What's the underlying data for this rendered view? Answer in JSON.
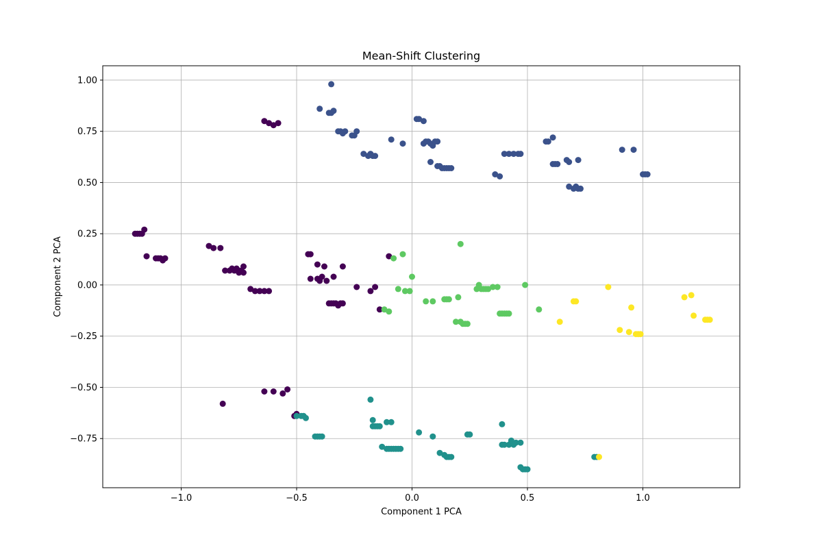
{
  "chart_data": {
    "type": "scatter",
    "title": "Mean-Shift Clustering",
    "xlabel": "Component 1 PCA",
    "ylabel": "Component 2 PCA",
    "xlim": [
      -1.34,
      1.42
    ],
    "ylim": [
      -0.99,
      1.07
    ],
    "xticks": [
      -1.0,
      -0.5,
      0.0,
      0.5,
      1.0
    ],
    "xtick_labels": [
      "−1.0",
      "−0.5",
      "0.0",
      "0.5",
      "1.0"
    ],
    "yticks": [
      -0.75,
      -0.5,
      -0.25,
      0.0,
      0.25,
      0.5,
      0.75,
      1.0
    ],
    "ytick_labels": [
      "−0.75",
      "−0.50",
      "−0.25",
      "0.00",
      "0.25",
      "0.50",
      "0.75",
      "1.00"
    ],
    "grid": true,
    "colors": [
      "#440154",
      "#3b528b",
      "#21918c",
      "#5ec962",
      "#fde725"
    ],
    "series": [
      {
        "cluster": 0,
        "points": [
          [
            -1.2,
            0.25
          ],
          [
            -1.19,
            0.25
          ],
          [
            -1.18,
            0.25
          ],
          [
            -1.17,
            0.25
          ],
          [
            -1.16,
            0.27
          ],
          [
            -1.15,
            0.14
          ],
          [
            -1.11,
            0.13
          ],
          [
            -1.1,
            0.13
          ],
          [
            -1.09,
            0.13
          ],
          [
            -1.08,
            0.12
          ],
          [
            -1.07,
            0.13
          ],
          [
            -0.88,
            0.19
          ],
          [
            -0.86,
            0.18
          ],
          [
            -0.83,
            0.18
          ],
          [
            -0.81,
            0.07
          ],
          [
            -0.79,
            0.07
          ],
          [
            -0.78,
            0.08
          ],
          [
            -0.77,
            0.07
          ],
          [
            -0.76,
            0.08
          ],
          [
            -0.75,
            0.06
          ],
          [
            -0.74,
            0.07
          ],
          [
            -0.73,
            0.09
          ],
          [
            -0.73,
            0.06
          ],
          [
            -0.7,
            -0.02
          ],
          [
            -0.68,
            -0.03
          ],
          [
            -0.66,
            -0.03
          ],
          [
            -0.64,
            -0.03
          ],
          [
            -0.62,
            -0.03
          ],
          [
            -0.64,
            0.8
          ],
          [
            -0.62,
            0.79
          ],
          [
            -0.6,
            0.78
          ],
          [
            -0.58,
            0.79
          ],
          [
            -0.45,
            0.15
          ],
          [
            -0.44,
            0.15
          ],
          [
            -0.44,
            0.03
          ],
          [
            -0.41,
            0.03
          ],
          [
            -0.4,
            0.02
          ],
          [
            -0.39,
            0.04
          ],
          [
            -0.37,
            0.02
          ],
          [
            -0.34,
            0.04
          ],
          [
            -0.41,
            0.1
          ],
          [
            -0.38,
            0.09
          ],
          [
            -0.3,
            0.09
          ],
          [
            -0.36,
            -0.09
          ],
          [
            -0.35,
            -0.09
          ],
          [
            -0.34,
            -0.09
          ],
          [
            -0.33,
            -0.09
          ],
          [
            -0.32,
            -0.1
          ],
          [
            -0.31,
            -0.09
          ],
          [
            -0.3,
            -0.09
          ],
          [
            -0.24,
            -0.01
          ],
          [
            -0.18,
            -0.03
          ],
          [
            -0.16,
            -0.01
          ],
          [
            -0.1,
            0.14
          ],
          [
            -0.14,
            -0.12
          ],
          [
            -0.82,
            -0.58
          ],
          [
            -0.64,
            -0.52
          ],
          [
            -0.6,
            -0.52
          ],
          [
            -0.56,
            -0.53
          ],
          [
            -0.54,
            -0.51
          ],
          [
            -0.51,
            -0.64
          ],
          [
            -0.5,
            -0.63
          ]
        ]
      },
      {
        "cluster": 1,
        "points": [
          [
            -0.35,
            0.98
          ],
          [
            -0.4,
            0.86
          ],
          [
            -0.36,
            0.84
          ],
          [
            -0.35,
            0.84
          ],
          [
            -0.34,
            0.85
          ],
          [
            -0.32,
            0.75
          ],
          [
            -0.31,
            0.75
          ],
          [
            -0.3,
            0.74
          ],
          [
            -0.29,
            0.75
          ],
          [
            -0.26,
            0.73
          ],
          [
            -0.25,
            0.73
          ],
          [
            -0.24,
            0.75
          ],
          [
            -0.21,
            0.64
          ],
          [
            -0.19,
            0.63
          ],
          [
            -0.18,
            0.64
          ],
          [
            -0.17,
            0.63
          ],
          [
            -0.16,
            0.63
          ],
          [
            -0.09,
            0.71
          ],
          [
            -0.04,
            0.69
          ],
          [
            0.02,
            0.81
          ],
          [
            0.03,
            0.81
          ],
          [
            0.05,
            0.8
          ],
          [
            0.05,
            0.69
          ],
          [
            0.06,
            0.7
          ],
          [
            0.07,
            0.7
          ],
          [
            0.08,
            0.69
          ],
          [
            0.09,
            0.68
          ],
          [
            0.1,
            0.7
          ],
          [
            0.11,
            0.7
          ],
          [
            0.08,
            0.6
          ],
          [
            0.11,
            0.58
          ],
          [
            0.12,
            0.58
          ],
          [
            0.13,
            0.57
          ],
          [
            0.14,
            0.57
          ],
          [
            0.15,
            0.57
          ],
          [
            0.16,
            0.57
          ],
          [
            0.17,
            0.57
          ],
          [
            0.36,
            0.54
          ],
          [
            0.38,
            0.53
          ],
          [
            0.4,
            0.64
          ],
          [
            0.42,
            0.64
          ],
          [
            0.44,
            0.64
          ],
          [
            0.46,
            0.64
          ],
          [
            0.47,
            0.64
          ],
          [
            0.58,
            0.7
          ],
          [
            0.59,
            0.7
          ],
          [
            0.61,
            0.72
          ],
          [
            0.61,
            0.59
          ],
          [
            0.62,
            0.59
          ],
          [
            0.63,
            0.59
          ],
          [
            0.67,
            0.61
          ],
          [
            0.68,
            0.6
          ],
          [
            0.72,
            0.61
          ],
          [
            0.68,
            0.48
          ],
          [
            0.7,
            0.47
          ],
          [
            0.71,
            0.48
          ],
          [
            0.72,
            0.47
          ],
          [
            0.73,
            0.47
          ],
          [
            0.91,
            0.66
          ],
          [
            0.96,
            0.66
          ],
          [
            1.0,
            0.54
          ],
          [
            1.01,
            0.54
          ],
          [
            1.02,
            0.54
          ]
        ]
      },
      {
        "cluster": 2,
        "points": [
          [
            -0.5,
            -0.64
          ],
          [
            -0.48,
            -0.64
          ],
          [
            -0.47,
            -0.64
          ],
          [
            -0.46,
            -0.65
          ],
          [
            -0.42,
            -0.74
          ],
          [
            -0.41,
            -0.74
          ],
          [
            -0.4,
            -0.74
          ],
          [
            -0.39,
            -0.74
          ],
          [
            -0.18,
            -0.56
          ],
          [
            -0.17,
            -0.66
          ],
          [
            -0.17,
            -0.69
          ],
          [
            -0.16,
            -0.69
          ],
          [
            -0.15,
            -0.69
          ],
          [
            -0.14,
            -0.69
          ],
          [
            -0.13,
            -0.79
          ],
          [
            -0.11,
            -0.8
          ],
          [
            -0.1,
            -0.8
          ],
          [
            -0.09,
            -0.8
          ],
          [
            -0.08,
            -0.8
          ],
          [
            -0.07,
            -0.8
          ],
          [
            -0.06,
            -0.8
          ],
          [
            -0.05,
            -0.8
          ],
          [
            -0.11,
            -0.67
          ],
          [
            -0.09,
            -0.67
          ],
          [
            0.03,
            -0.72
          ],
          [
            0.09,
            -0.74
          ],
          [
            0.12,
            -0.82
          ],
          [
            0.14,
            -0.83
          ],
          [
            0.15,
            -0.84
          ],
          [
            0.16,
            -0.84
          ],
          [
            0.17,
            -0.84
          ],
          [
            0.24,
            -0.73
          ],
          [
            0.25,
            -0.73
          ],
          [
            0.39,
            -0.68
          ],
          [
            0.39,
            -0.78
          ],
          [
            0.4,
            -0.78
          ],
          [
            0.42,
            -0.78
          ],
          [
            0.43,
            -0.77
          ],
          [
            0.44,
            -0.78
          ],
          [
            0.43,
            -0.76
          ],
          [
            0.45,
            -0.77
          ],
          [
            0.47,
            -0.77
          ],
          [
            0.47,
            -0.89
          ],
          [
            0.48,
            -0.9
          ],
          [
            0.49,
            -0.9
          ],
          [
            0.5,
            -0.9
          ],
          [
            0.79,
            -0.84
          ],
          [
            0.8,
            -0.84
          ]
        ]
      },
      {
        "cluster": 3,
        "points": [
          [
            -0.04,
            0.15
          ],
          [
            -0.08,
            0.13
          ],
          [
            0.0,
            0.04
          ],
          [
            -0.06,
            -0.02
          ],
          [
            -0.03,
            -0.03
          ],
          [
            -0.01,
            -0.03
          ],
          [
            -0.12,
            -0.12
          ],
          [
            -0.1,
            -0.13
          ],
          [
            0.06,
            -0.08
          ],
          [
            0.09,
            -0.08
          ],
          [
            0.14,
            -0.07
          ],
          [
            0.15,
            -0.07
          ],
          [
            0.16,
            -0.07
          ],
          [
            0.2,
            -0.06
          ],
          [
            0.21,
            0.2
          ],
          [
            0.19,
            -0.18
          ],
          [
            0.21,
            -0.18
          ],
          [
            0.22,
            -0.19
          ],
          [
            0.23,
            -0.19
          ],
          [
            0.24,
            -0.19
          ],
          [
            0.28,
            -0.02
          ],
          [
            0.29,
            0.0
          ],
          [
            0.3,
            -0.02
          ],
          [
            0.31,
            -0.02
          ],
          [
            0.32,
            -0.02
          ],
          [
            0.33,
            -0.02
          ],
          [
            0.35,
            -0.01
          ],
          [
            0.37,
            -0.01
          ],
          [
            0.38,
            -0.14
          ],
          [
            0.39,
            -0.14
          ],
          [
            0.4,
            -0.14
          ],
          [
            0.41,
            -0.14
          ],
          [
            0.42,
            -0.14
          ],
          [
            0.49,
            0.0
          ],
          [
            0.55,
            -0.12
          ]
        ]
      },
      {
        "cluster": 4,
        "points": [
          [
            0.64,
            -0.18
          ],
          [
            0.7,
            -0.08
          ],
          [
            0.71,
            -0.08
          ],
          [
            0.81,
            -0.84
          ],
          [
            0.85,
            -0.01
          ],
          [
            0.9,
            -0.22
          ],
          [
            0.94,
            -0.23
          ],
          [
            0.95,
            -0.11
          ],
          [
            0.97,
            -0.24
          ],
          [
            0.98,
            -0.24
          ],
          [
            0.99,
            -0.24
          ],
          [
            1.18,
            -0.06
          ],
          [
            1.21,
            -0.05
          ],
          [
            1.22,
            -0.15
          ],
          [
            1.27,
            -0.17
          ],
          [
            1.28,
            -0.17
          ],
          [
            1.29,
            -0.17
          ]
        ]
      }
    ]
  }
}
